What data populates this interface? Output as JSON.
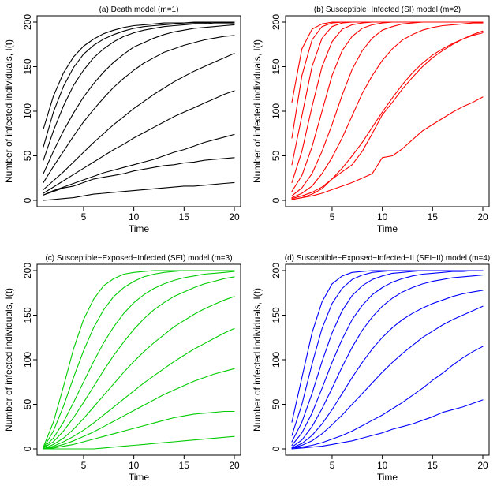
{
  "chart_data": [
    {
      "type": "line",
      "title": "(a) Death model (m=1)",
      "xlabel": "Time",
      "ylabel": "Number of infected individuals, I(t)",
      "xlim": [
        1,
        20
      ],
      "ylim": [
        0,
        200
      ],
      "xticks": [
        5,
        10,
        15,
        20
      ],
      "yticks": [
        0,
        50,
        100,
        150,
        200
      ],
      "color": "#000000",
      "x": [
        1,
        2,
        3,
        4,
        5,
        6,
        7,
        8,
        9,
        10,
        11,
        12,
        13,
        14,
        15,
        16,
        17,
        18,
        19,
        20
      ],
      "series": [
        {
          "values": [
            80,
            117,
            143,
            161,
            173,
            181,
            187,
            191,
            194,
            196,
            197,
            198,
            199,
            199,
            199,
            200,
            200,
            200,
            200,
            200
          ]
        },
        {
          "values": [
            60,
            99,
            128,
            149,
            164,
            174,
            181,
            186,
            190,
            193,
            195,
            196,
            197,
            198,
            199,
            199,
            199,
            200,
            200,
            200
          ]
        },
        {
          "values": [
            45,
            78,
            106,
            129,
            146,
            160,
            170,
            178,
            184,
            188,
            191,
            193,
            195,
            196,
            197,
            198,
            198,
            199,
            199,
            199
          ]
        },
        {
          "values": [
            30,
            55,
            78,
            98,
            116,
            131,
            144,
            155,
            164,
            172,
            177,
            182,
            186,
            189,
            191,
            193,
            194,
            195,
            196,
            197
          ]
        },
        {
          "values": [
            20,
            38,
            55,
            72,
            88,
            102,
            115,
            127,
            137,
            146,
            154,
            160,
            166,
            170,
            174,
            177,
            180,
            182,
            184,
            185
          ]
        },
        {
          "values": [
            12,
            22,
            32,
            43,
            54,
            65,
            75,
            85,
            94,
            103,
            111,
            119,
            126,
            133,
            139,
            145,
            150,
            155,
            160,
            165
          ]
        },
        {
          "values": [
            8,
            15,
            22,
            29,
            36,
            43,
            50,
            57,
            63,
            70,
            76,
            82,
            88,
            94,
            99,
            104,
            109,
            114,
            119,
            123
          ]
        },
        {
          "values": [
            6,
            11,
            15,
            19,
            23,
            27,
            31,
            34,
            37,
            40,
            43,
            46,
            50,
            54,
            57,
            61,
            65,
            68,
            71,
            74
          ]
        },
        {
          "values": [
            6,
            10,
            14,
            16,
            20,
            24,
            26,
            28,
            30,
            33,
            35,
            37,
            39,
            40,
            42,
            43,
            45,
            46,
            47,
            48
          ]
        },
        {
          "values": [
            0,
            1,
            2,
            3,
            5,
            7,
            8,
            9,
            10,
            11,
            12,
            13,
            14,
            15,
            16,
            16,
            17,
            18,
            19,
            20
          ]
        }
      ]
    },
    {
      "type": "line",
      "title": "(b) Susceptible−Infected (SI) model (m=2)",
      "xlabel": "Time",
      "ylabel": "Number of infected individuals, I(t)",
      "xlim": [
        1,
        20
      ],
      "ylim": [
        0,
        200
      ],
      "xticks": [
        5,
        10,
        15,
        20
      ],
      "yticks": [
        0,
        50,
        100,
        150,
        200
      ],
      "color": "#ff0000",
      "x": [
        1,
        2,
        3,
        4,
        5,
        6,
        7,
        8,
        9,
        10,
        11,
        12,
        13,
        14,
        15,
        16,
        17,
        18,
        19,
        20
      ],
      "series": [
        {
          "values": [
            110,
            170,
            192,
            198,
            200,
            200,
            200,
            200,
            200,
            200,
            200,
            200,
            200,
            200,
            200,
            200,
            200,
            200,
            200,
            200
          ]
        },
        {
          "values": [
            70,
            140,
            180,
            195,
            199,
            200,
            200,
            200,
            200,
            200,
            200,
            200,
            200,
            200,
            200,
            200,
            200,
            200,
            200,
            200
          ]
        },
        {
          "values": [
            40,
            95,
            150,
            182,
            195,
            199,
            200,
            200,
            200,
            200,
            200,
            200,
            200,
            200,
            200,
            200,
            200,
            200,
            200,
            200
          ]
        },
        {
          "values": [
            20,
            55,
            105,
            150,
            178,
            192,
            197,
            199,
            200,
            200,
            200,
            200,
            200,
            200,
            200,
            200,
            200,
            200,
            200,
            200
          ]
        },
        {
          "values": [
            10,
            28,
            60,
            100,
            140,
            168,
            184,
            193,
            197,
            199,
            200,
            200,
            200,
            200,
            200,
            200,
            200,
            200,
            200,
            200
          ]
        },
        {
          "values": [
            5,
            14,
            30,
            55,
            85,
            118,
            147,
            168,
            182,
            191,
            195,
            198,
            199,
            200,
            200,
            200,
            200,
            200,
            200,
            200
          ]
        },
        {
          "values": [
            3,
            8,
            16,
            30,
            48,
            70,
            95,
            120,
            140,
            157,
            170,
            180,
            186,
            191,
            194,
            196,
            197,
            198,
            199,
            199
          ]
        },
        {
          "values": [
            2,
            5,
            9,
            15,
            24,
            36,
            50,
            65,
            82,
            99,
            115,
            130,
            143,
            154,
            163,
            170,
            176,
            181,
            185,
            188
          ]
        },
        {
          "values": [
            1,
            3,
            7,
            13,
            24,
            32,
            40,
            55,
            75,
            96,
            110,
            125,
            138,
            150,
            160,
            168,
            175,
            181,
            186,
            190
          ]
        },
        {
          "values": [
            1,
            3,
            5,
            8,
            12,
            16,
            20,
            25,
            30,
            48,
            50,
            58,
            68,
            78,
            85,
            92,
            99,
            105,
            110,
            116
          ]
        }
      ]
    },
    {
      "type": "line",
      "title": "(c) Susceptible−Exposed−Infected (SEI) model (m=3)",
      "xlabel": "Time",
      "ylabel": "Number of infected individuals, I(t)",
      "xlim": [
        1,
        20
      ],
      "ylim": [
        0,
        200
      ],
      "xticks": [
        5,
        10,
        15,
        20
      ],
      "yticks": [
        0,
        50,
        100,
        150,
        200
      ],
      "color": "#00cc00",
      "x": [
        1,
        2,
        3,
        4,
        5,
        6,
        7,
        8,
        9,
        10,
        11,
        12,
        13,
        14,
        15,
        16,
        17,
        18,
        19,
        20
      ],
      "series": [
        {
          "values": [
            2,
            30,
            70,
            112,
            145,
            168,
            183,
            191,
            196,
            198,
            199,
            200,
            200,
            200,
            200,
            200,
            200,
            200,
            200,
            200
          ]
        },
        {
          "values": [
            1,
            20,
            48,
            80,
            110,
            136,
            156,
            171,
            181,
            188,
            193,
            196,
            198,
            199,
            200,
            200,
            200,
            200,
            200,
            200
          ]
        },
        {
          "values": [
            1,
            12,
            30,
            52,
            75,
            98,
            119,
            137,
            152,
            164,
            173,
            180,
            185,
            189,
            192,
            194,
            196,
            197,
            198,
            199
          ]
        },
        {
          "values": [
            1,
            8,
            20,
            35,
            52,
            70,
            88,
            105,
            120,
            134,
            146,
            156,
            164,
            171,
            176,
            181,
            185,
            188,
            191,
            193
          ]
        },
        {
          "values": [
            0,
            5,
            12,
            22,
            34,
            47,
            60,
            73,
            86,
            98,
            109,
            119,
            128,
            137,
            144,
            151,
            157,
            162,
            167,
            171
          ]
        },
        {
          "values": [
            0,
            3,
            8,
            14,
            21,
            29,
            38,
            47,
            56,
            65,
            74,
            82,
            90,
            98,
            105,
            112,
            118,
            124,
            130,
            135
          ]
        },
        {
          "values": [
            0,
            2,
            5,
            9,
            14,
            19,
            25,
            31,
            37,
            43,
            49,
            55,
            61,
            66,
            71,
            76,
            80,
            84,
            87,
            90
          ]
        },
        {
          "values": [
            0,
            1,
            3,
            5,
            8,
            11,
            14,
            17,
            20,
            23,
            26,
            29,
            32,
            35,
            37,
            39,
            40,
            41,
            42,
            42
          ]
        },
        {
          "values": [
            0,
            0,
            0,
            0,
            0,
            0,
            1,
            2,
            3,
            4,
            5,
            6,
            7,
            8,
            9,
            10,
            11,
            12,
            13,
            14
          ]
        }
      ]
    },
    {
      "type": "line",
      "title": "(d) Susceptible−Exposed−Infected−II (SEI−II) model (m=4)",
      "xlabel": "Time",
      "ylabel": "Number of infected individuals, I(t)",
      "xlim": [
        1,
        20
      ],
      "ylim": [
        0,
        200
      ],
      "xticks": [
        5,
        10,
        15,
        20
      ],
      "yticks": [
        0,
        50,
        100,
        150,
        200
      ],
      "color": "#0000ff",
      "x": [
        1,
        2,
        3,
        4,
        5,
        6,
        7,
        8,
        9,
        10,
        11,
        12,
        13,
        14,
        15,
        16,
        17,
        18,
        19,
        20
      ],
      "series": [
        {
          "values": [
            30,
            80,
            130,
            165,
            185,
            194,
            198,
            199,
            200,
            200,
            200,
            200,
            200,
            200,
            200,
            200,
            200,
            200,
            200,
            200
          ]
        },
        {
          "values": [
            15,
            50,
            95,
            135,
            163,
            180,
            190,
            195,
            198,
            199,
            200,
            200,
            200,
            200,
            200,
            200,
            200,
            200,
            200,
            200
          ]
        },
        {
          "values": [
            8,
            30,
            62,
            98,
            130,
            155,
            172,
            183,
            190,
            194,
            197,
            198,
            199,
            200,
            200,
            200,
            200,
            200,
            200,
            200
          ]
        },
        {
          "values": [
            4,
            18,
            40,
            68,
            97,
            123,
            145,
            161,
            173,
            181,
            187,
            191,
            194,
            196,
            197,
            198,
            199,
            199,
            200,
            200
          ]
        },
        {
          "values": [
            2,
            10,
            25,
            45,
            68,
            92,
            114,
            133,
            148,
            160,
            169,
            176,
            181,
            185,
            188,
            190,
            192,
            193,
            194,
            195
          ]
        },
        {
          "values": [
            1,
            6,
            15,
            28,
            44,
            62,
            80,
            97,
            112,
            125,
            136,
            145,
            152,
            158,
            163,
            167,
            171,
            174,
            176,
            178
          ]
        },
        {
          "values": [
            1,
            4,
            9,
            17,
            27,
            38,
            50,
            62,
            74,
            86,
            97,
            107,
            116,
            125,
            132,
            139,
            145,
            150,
            155,
            160
          ]
        },
        {
          "values": [
            1,
            2,
            4,
            7,
            11,
            15,
            20,
            26,
            32,
            38,
            45,
            52,
            60,
            68,
            77,
            85,
            94,
            102,
            109,
            115
          ]
        },
        {
          "values": [
            0,
            1,
            2,
            3,
            5,
            7,
            9,
            12,
            15,
            18,
            22,
            25,
            28,
            32,
            36,
            41,
            44,
            47,
            51,
            55
          ]
        }
      ]
    }
  ]
}
